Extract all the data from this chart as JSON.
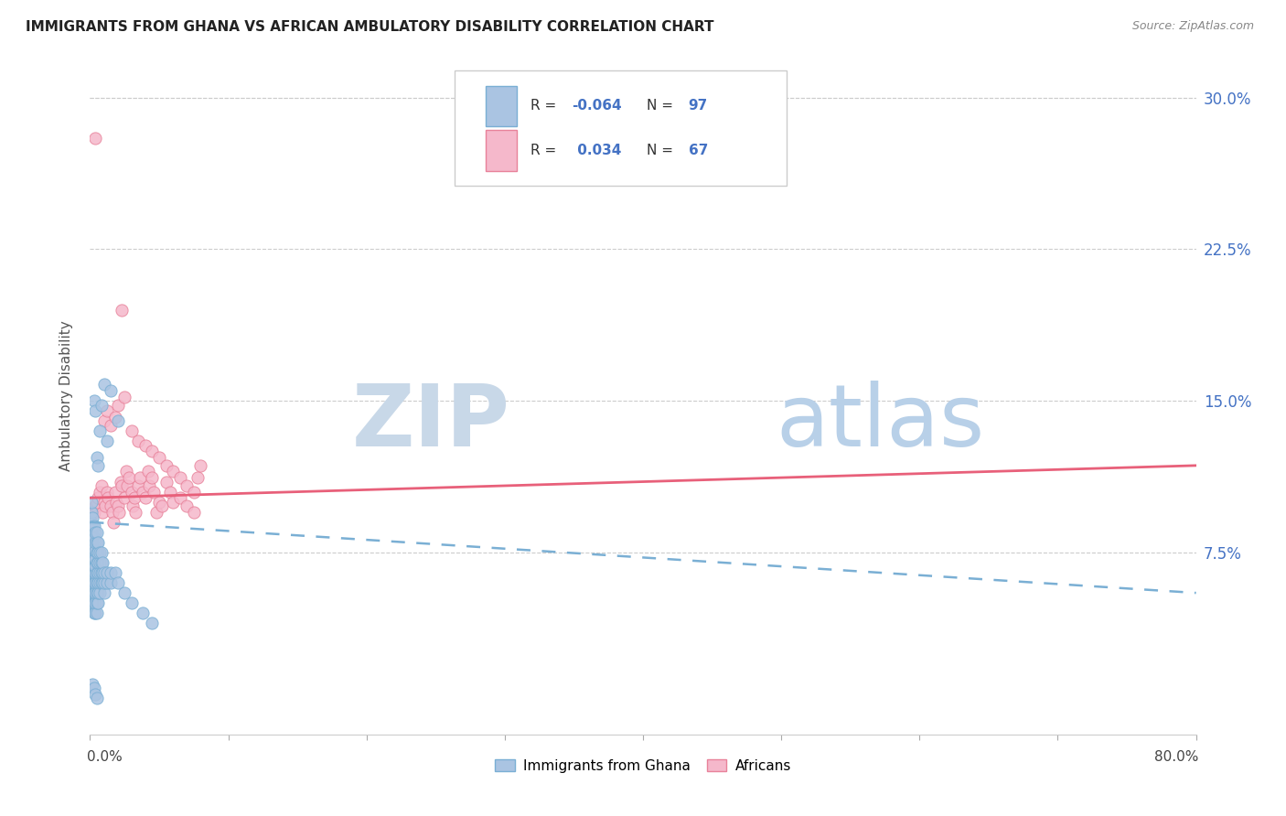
{
  "title": "IMMIGRANTS FROM GHANA VS AFRICAN AMBULATORY DISABILITY CORRELATION CHART",
  "source": "Source: ZipAtlas.com",
  "ylabel": "Ambulatory Disability",
  "ytick_labels": [
    "",
    "7.5%",
    "15.0%",
    "22.5%",
    "30.0%"
  ],
  "ytick_values": [
    0.0,
    0.075,
    0.15,
    0.225,
    0.3
  ],
  "xlim": [
    0.0,
    0.8
  ],
  "ylim": [
    -0.015,
    0.32
  ],
  "color_ghana": "#aac4e2",
  "color_ghana_edge": "#7aafd4",
  "color_african": "#f5b8cb",
  "color_african_edge": "#e8829a",
  "trend_ghana_color": "#7aafd4",
  "trend_african_color": "#e8607a",
  "watermark_zip_color": "#c8d8e8",
  "watermark_atlas_color": "#b8d0e8",
  "background_color": "#ffffff",
  "ghana_x": [
    0.001,
    0.001,
    0.001,
    0.001,
    0.001,
    0.001,
    0.001,
    0.001,
    0.001,
    0.001,
    0.002,
    0.002,
    0.002,
    0.002,
    0.002,
    0.002,
    0.002,
    0.002,
    0.002,
    0.002,
    0.003,
    0.003,
    0.003,
    0.003,
    0.003,
    0.003,
    0.003,
    0.003,
    0.003,
    0.003,
    0.004,
    0.004,
    0.004,
    0.004,
    0.004,
    0.004,
    0.004,
    0.004,
    0.004,
    0.004,
    0.005,
    0.005,
    0.005,
    0.005,
    0.005,
    0.005,
    0.005,
    0.005,
    0.005,
    0.006,
    0.006,
    0.006,
    0.006,
    0.006,
    0.006,
    0.006,
    0.007,
    0.007,
    0.007,
    0.007,
    0.007,
    0.008,
    0.008,
    0.008,
    0.008,
    0.009,
    0.009,
    0.009,
    0.01,
    0.01,
    0.01,
    0.012,
    0.012,
    0.015,
    0.015,
    0.018,
    0.02,
    0.025,
    0.03,
    0.038,
    0.045,
    0.003,
    0.004,
    0.01,
    0.015,
    0.008,
    0.02,
    0.007,
    0.012,
    0.005,
    0.006,
    0.002,
    0.003,
    0.004,
    0.005
  ],
  "ghana_y": [
    0.05,
    0.06,
    0.065,
    0.07,
    0.075,
    0.08,
    0.085,
    0.09,
    0.095,
    0.1,
    0.05,
    0.055,
    0.06,
    0.065,
    0.068,
    0.072,
    0.078,
    0.082,
    0.088,
    0.092,
    0.045,
    0.05,
    0.055,
    0.06,
    0.065,
    0.068,
    0.072,
    0.078,
    0.082,
    0.088,
    0.045,
    0.05,
    0.055,
    0.06,
    0.065,
    0.068,
    0.072,
    0.076,
    0.08,
    0.085,
    0.045,
    0.05,
    0.055,
    0.06,
    0.065,
    0.07,
    0.075,
    0.08,
    0.085,
    0.05,
    0.055,
    0.06,
    0.065,
    0.07,
    0.075,
    0.08,
    0.055,
    0.06,
    0.065,
    0.07,
    0.075,
    0.06,
    0.065,
    0.07,
    0.075,
    0.06,
    0.065,
    0.07,
    0.055,
    0.06,
    0.065,
    0.06,
    0.065,
    0.06,
    0.065,
    0.065,
    0.06,
    0.055,
    0.05,
    0.045,
    0.04,
    0.15,
    0.145,
    0.158,
    0.155,
    0.148,
    0.14,
    0.135,
    0.13,
    0.122,
    0.118,
    0.01,
    0.008,
    0.005,
    0.003
  ],
  "african_x": [
    0.003,
    0.004,
    0.005,
    0.006,
    0.007,
    0.008,
    0.009,
    0.01,
    0.011,
    0.012,
    0.013,
    0.015,
    0.016,
    0.017,
    0.018,
    0.019,
    0.02,
    0.021,
    0.022,
    0.023,
    0.025,
    0.026,
    0.027,
    0.028,
    0.03,
    0.031,
    0.032,
    0.033,
    0.035,
    0.036,
    0.038,
    0.04,
    0.042,
    0.043,
    0.045,
    0.046,
    0.048,
    0.05,
    0.052,
    0.055,
    0.058,
    0.06,
    0.065,
    0.07,
    0.075,
    0.078,
    0.08,
    0.01,
    0.012,
    0.015,
    0.018,
    0.02,
    0.025,
    0.03,
    0.035,
    0.04,
    0.045,
    0.05,
    0.055,
    0.06,
    0.065,
    0.07,
    0.075,
    0.004,
    0.023
  ],
  "african_y": [
    0.095,
    0.098,
    0.1,
    0.102,
    0.105,
    0.108,
    0.095,
    0.1,
    0.098,
    0.105,
    0.102,
    0.098,
    0.095,
    0.09,
    0.105,
    0.1,
    0.098,
    0.095,
    0.11,
    0.108,
    0.102,
    0.115,
    0.108,
    0.112,
    0.105,
    0.098,
    0.102,
    0.095,
    0.108,
    0.112,
    0.105,
    0.102,
    0.115,
    0.108,
    0.112,
    0.105,
    0.095,
    0.1,
    0.098,
    0.11,
    0.105,
    0.1,
    0.102,
    0.098,
    0.095,
    0.112,
    0.118,
    0.14,
    0.145,
    0.138,
    0.142,
    0.148,
    0.152,
    0.135,
    0.13,
    0.128,
    0.125,
    0.122,
    0.118,
    0.115,
    0.112,
    0.108,
    0.105,
    0.28,
    0.195
  ],
  "trend_ghana_start_y": 0.09,
  "trend_ghana_end_y": 0.055,
  "trend_african_start_y": 0.102,
  "trend_african_end_y": 0.118,
  "ghana_trend_x_start": 0.0,
  "ghana_trend_x_end": 0.8,
  "african_trend_x_start": 0.0,
  "african_trend_x_end": 0.8
}
